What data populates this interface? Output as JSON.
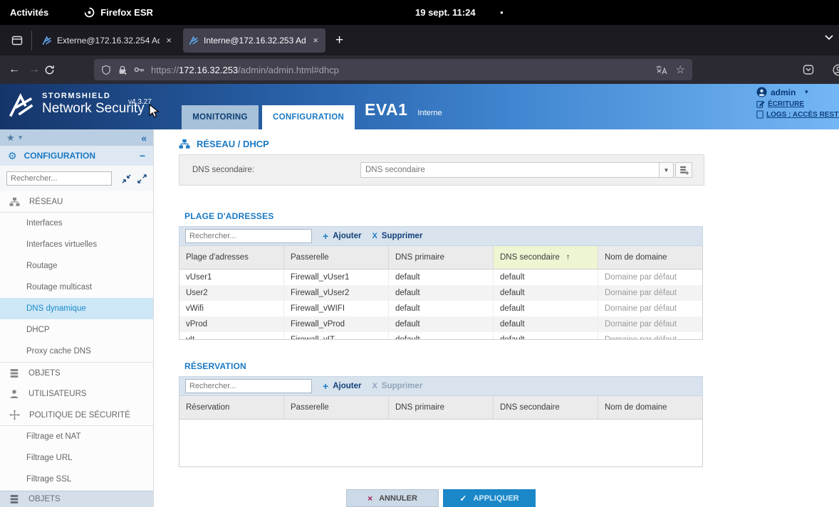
{
  "gnome": {
    "activities": "Activités",
    "app_menu": "Firefox ESR",
    "clock": "19 sept.  11:24",
    "notification_dot": "●"
  },
  "browser": {
    "tabs": [
      {
        "title": "Externe@172.16.32.254 Ad",
        "close": "×"
      },
      {
        "title": "Interne@172.16.32.253 Ad",
        "close": "×"
      }
    ],
    "new_tab": "+",
    "back": "←",
    "forward": "→",
    "url_scheme": "https://",
    "url_host": "172.16.32.253",
    "url_path": "/admin/admin.html#dhcp",
    "bookmark_star": "☆"
  },
  "header": {
    "brand_top": "STORMSHIELD",
    "brand_bottom": "Network Security",
    "version": "v4.3.27",
    "tab_monitoring": "MONITORING",
    "tab_configuration": "CONFIGURATION",
    "device_name": "EVA1",
    "device_sub": "Interne",
    "user_name": "admin",
    "write_mode": "ÉCRITURE",
    "logs_link": "LOGS : ACCÈS RESTR"
  },
  "sidebar": {
    "fav_star": "★",
    "collapse": "«",
    "title": "CONFIGURATION",
    "minus": "−",
    "search_placeholder": "Rechercher...",
    "groups": [
      {
        "label": "RÉSEAU",
        "items": [
          "Interfaces",
          "Interfaces virtuelles",
          "Routage",
          "Routage multicast",
          "DNS dynamique",
          "DHCP",
          "Proxy cache DNS"
        ],
        "selected": "DNS dynamique"
      },
      {
        "label": "OBJETS",
        "items": []
      },
      {
        "label": "UTILISATEURS",
        "items": []
      },
      {
        "label": "POLITIQUE DE SÉCURITÉ",
        "items": [
          "Filtrage et NAT",
          "Filtrage URL",
          "Filtrage SSL"
        ]
      }
    ],
    "bottom_section": "OBJETS"
  },
  "main": {
    "page_title": "RÉSEAU / DHCP",
    "dns_secondary": {
      "label": "DNS secondaire:",
      "placeholder": "DNS secondaire",
      "dropdown": "▼"
    },
    "plage": {
      "title": "PLAGE D'ADRESSES",
      "search_placeholder": "Rechercher...",
      "add_label": "Ajouter",
      "delete_label": "Supprimer",
      "plus": "+",
      "x": "X",
      "sort_icon": "↑",
      "columns": [
        "Plage d'adresses",
        "Passerelle",
        "DNS primaire",
        "DNS secondaire",
        "Nom de domaine"
      ],
      "rows": [
        [
          "vUser1",
          "Firewall_vUser1",
          "default",
          "default",
          "Domaine par défaut"
        ],
        [
          "User2",
          "Firewall_vUser2",
          "default",
          "default",
          "Domaine par défaut"
        ],
        [
          "vWifi",
          "Firewall_vWIFI",
          "default",
          "default",
          "Domaine par défaut"
        ],
        [
          "vProd",
          "Firewall_vProd",
          "default",
          "default",
          "Domaine par défaut"
        ],
        [
          "vIt",
          "Firewall_vIT",
          "default",
          "default",
          "Domaine par défaut"
        ]
      ]
    },
    "reservation": {
      "title": "RÉSERVATION",
      "search_placeholder": "Rechercher...",
      "add_label": "Ajouter",
      "delete_label": "Supprimer",
      "plus": "+",
      "x": "X",
      "columns": [
        "Réservation",
        "Passerelle",
        "DNS primaire",
        "DNS secondaire",
        "Nom de domaine"
      ],
      "rows": []
    },
    "footer": {
      "cancel": "ANNULER",
      "apply": "APPLIQUER",
      "x": "×",
      "check": "✓"
    }
  },
  "colors": {
    "accent": "#1a79c4",
    "header_gradient_start": "#15356a",
    "header_gradient_end": "#74b7f5",
    "sorted_column_bg": "#edf5d2",
    "apply_button_bg": "#1a87c8",
    "selected_item_bg": "#cde7f7"
  }
}
